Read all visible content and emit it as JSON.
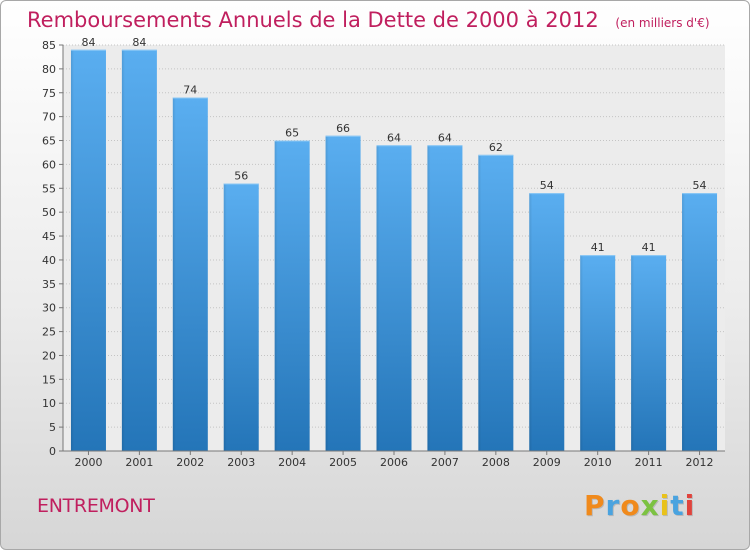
{
  "chart_data": {
    "type": "bar",
    "title": "Remboursements Annuels de la Dette de 2000 à 2012",
    "unit": "(en milliers d'€)",
    "categories": [
      "2000",
      "2001",
      "2002",
      "2003",
      "2004",
      "2005",
      "2006",
      "2007",
      "2008",
      "2009",
      "2010",
      "2011",
      "2012"
    ],
    "values": [
      84,
      84,
      74,
      56,
      65,
      66,
      64,
      64,
      62,
      54,
      41,
      41,
      54
    ],
    "ylim": [
      0,
      85
    ],
    "yticks": [
      0,
      5,
      10,
      15,
      20,
      25,
      30,
      35,
      40,
      45,
      50,
      55,
      60,
      65,
      70,
      75,
      80,
      85
    ],
    "grid": true,
    "bar_color_top": "#5aaef0",
    "bar_color_bottom": "#2475b8"
  },
  "footer": {
    "commune": "ENTREMONT",
    "brand": "Proxiti",
    "brand_colors": [
      "#f08a1c",
      "#4aa3df",
      "#f08a1c",
      "#7cc242",
      "#e9c21a",
      "#4aa3df",
      "#e0433c"
    ]
  }
}
